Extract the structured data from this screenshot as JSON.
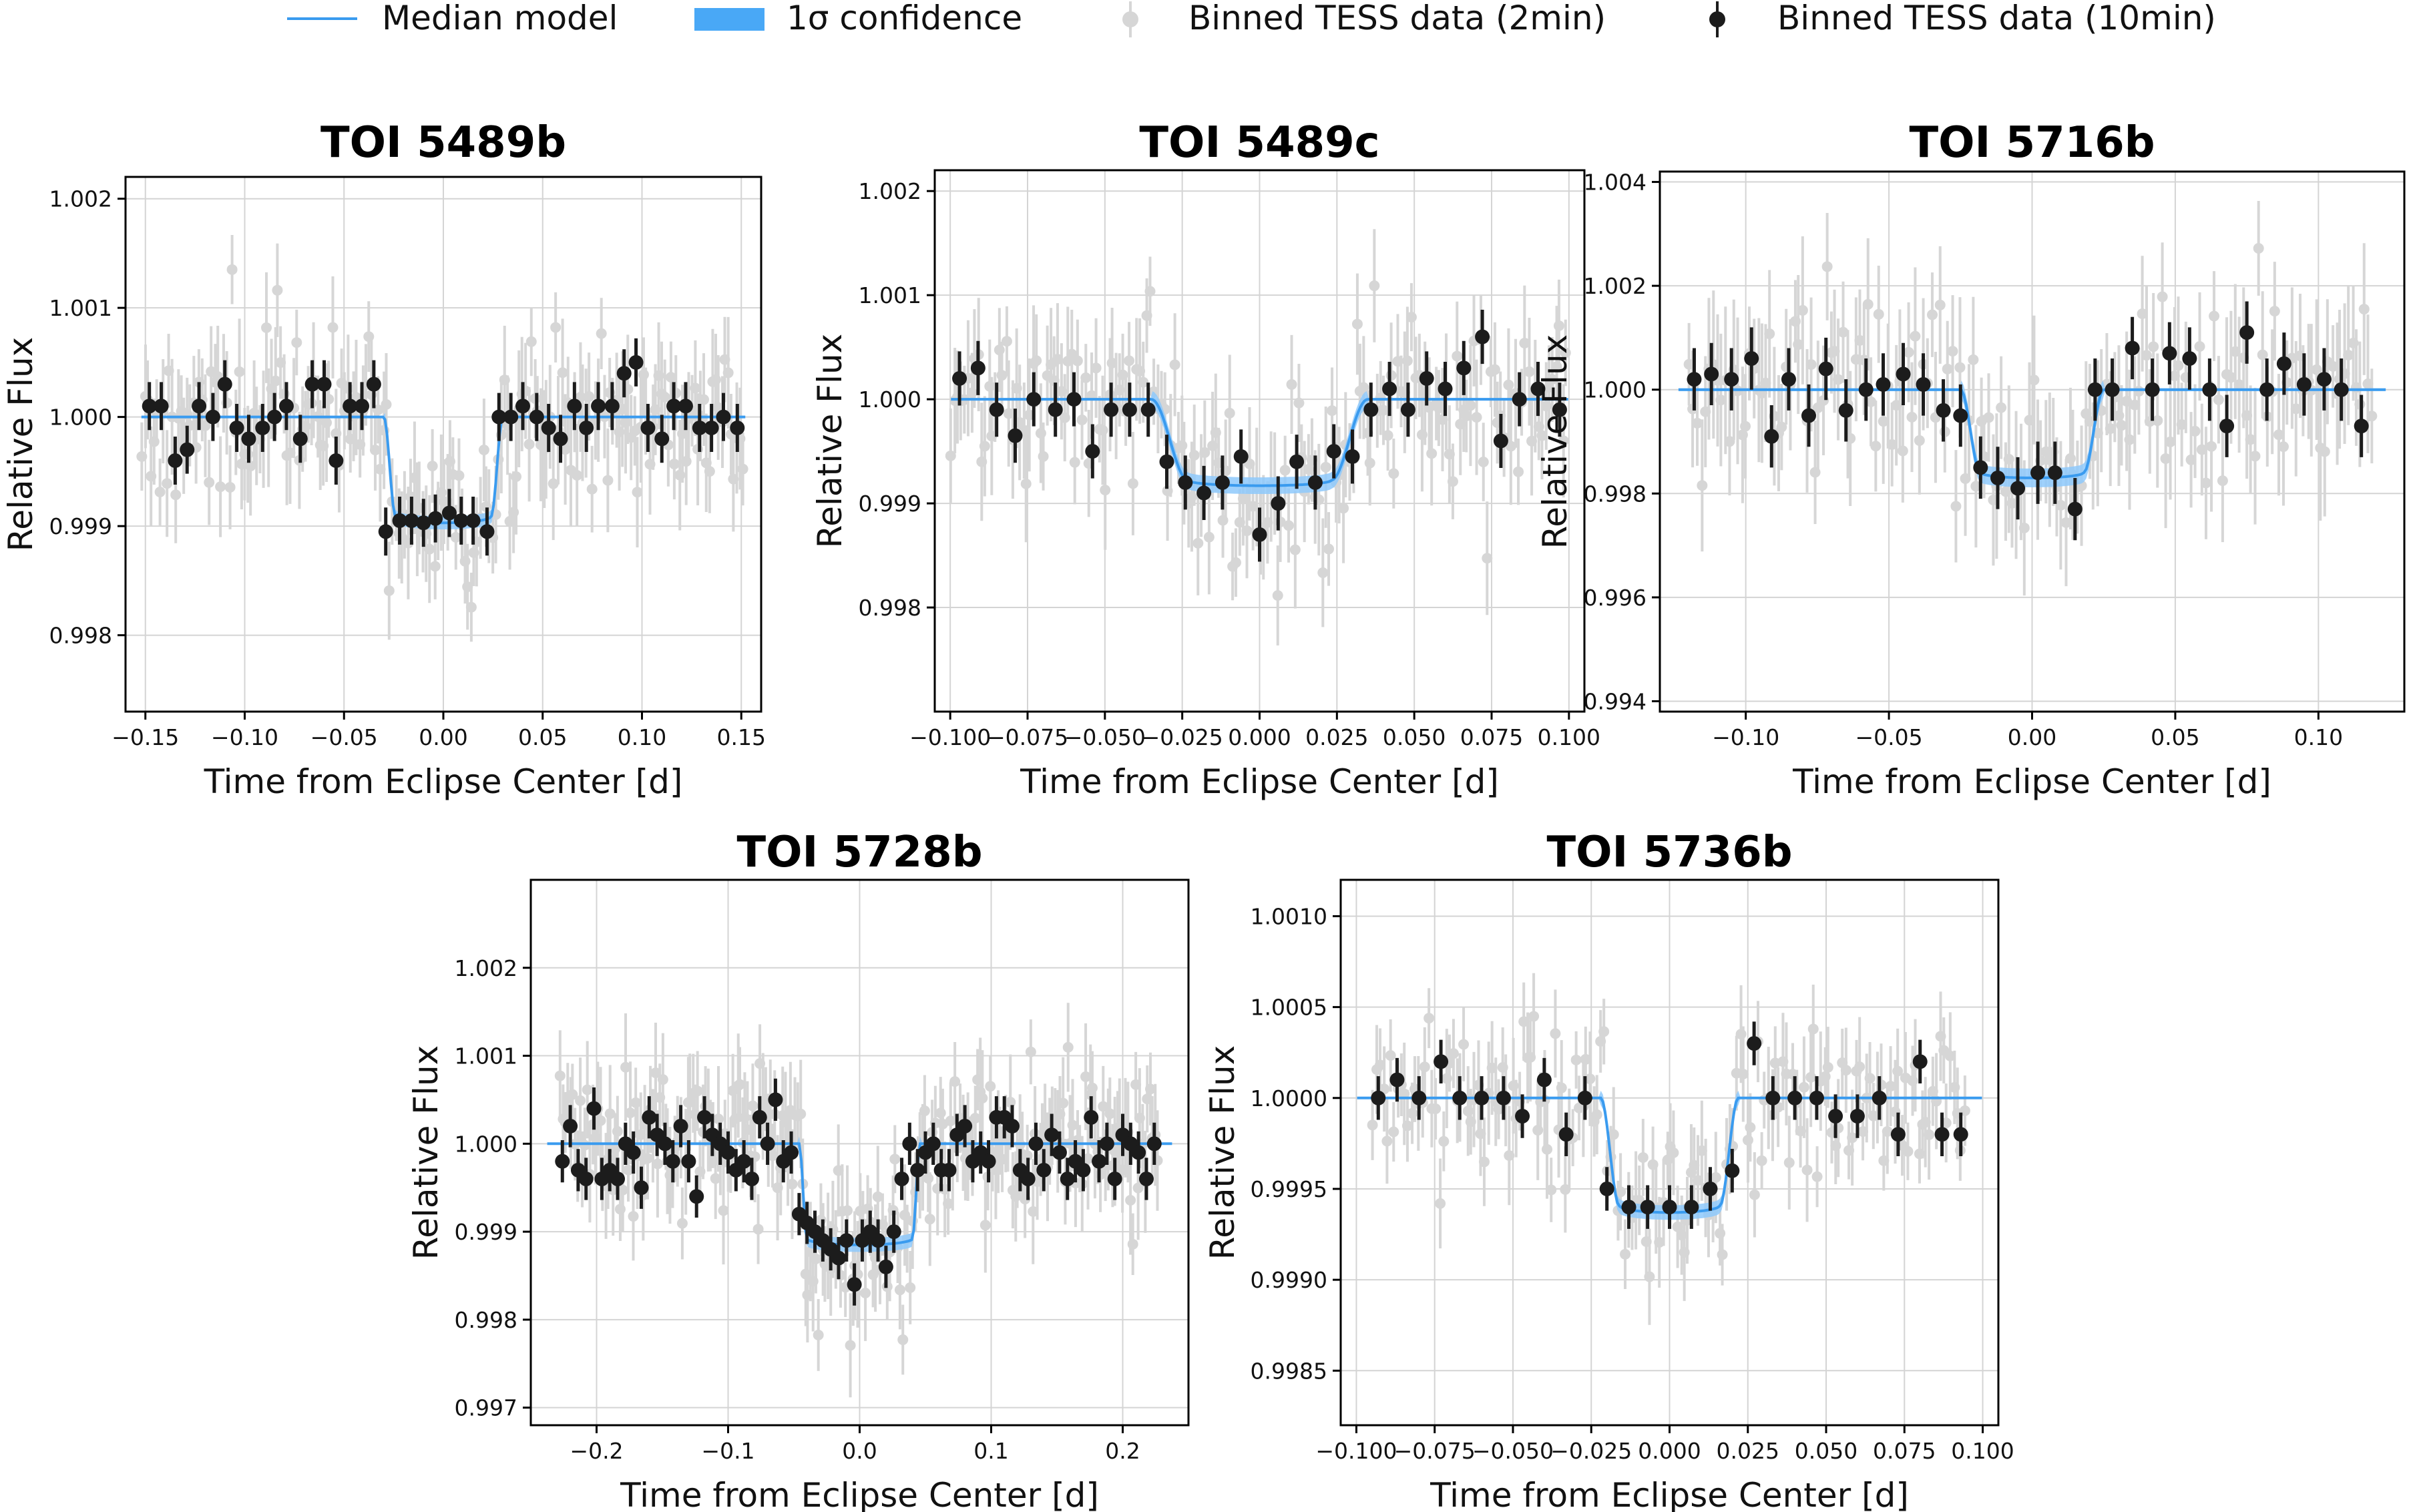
{
  "legend": {
    "items": [
      {
        "label": "Median model",
        "kind": "line",
        "color": "#3a9bef"
      },
      {
        "label": "1σ confidence",
        "kind": "band",
        "color": "#49a8f6"
      },
      {
        "label": "Binned TESS data (2min)",
        "kind": "gray-point",
        "color": "#d9d9d9"
      },
      {
        "label": "Binned TESS data (10min)",
        "kind": "black-point",
        "color": "#1a1a1a"
      }
    ]
  },
  "colors": {
    "model": "#3a9bef",
    "band": "#8ec9fb",
    "gray": "#d6d6d6",
    "black": "#1c1c1c"
  },
  "chart_data": [
    {
      "type": "scatter",
      "id": "toi5489b",
      "title": "TOI 5489b",
      "xlabel": "Time from Eclipse Center [d]",
      "ylabel": "Relative Flux",
      "xlim": [
        -0.16,
        0.16
      ],
      "ylim": [
        0.9973,
        1.0022
      ],
      "xticks": [
        -0.15,
        -0.1,
        -0.05,
        0.0,
        0.05,
        0.1,
        0.15
      ],
      "xtick_labels": [
        "−0.15",
        "−0.10",
        "−0.05",
        "0.00",
        "0.05",
        "0.10",
        "0.15"
      ],
      "yticks": [
        0.998,
        0.999,
        1.0,
        1.001,
        1.002
      ],
      "ytick_labels": [
        "0.998",
        "0.999",
        "1.000",
        "1.001",
        "1.002"
      ],
      "model": {
        "baseline": 1.0,
        "depth": 0.00097,
        "t_half": 0.03,
        "ingress": 0.006,
        "band": 6e-05
      },
      "gray": {
        "n": 200,
        "xrange": [
          -0.152,
          0.152
        ],
        "scatter": 0.00038,
        "err": 0.00042,
        "seed": 11
      },
      "binned": {
        "x": [
          -0.148,
          -0.142,
          -0.135,
          -0.129,
          -0.123,
          -0.116,
          -0.11,
          -0.104,
          -0.098,
          -0.091,
          -0.085,
          -0.079,
          -0.072,
          -0.066,
          -0.06,
          -0.054,
          -0.047,
          -0.041,
          -0.035,
          -0.029,
          -0.022,
          -0.016,
          -0.01,
          -0.004,
          0.003,
          0.009,
          0.015,
          0.022,
          0.028,
          0.034,
          0.04,
          0.047,
          0.053,
          0.059,
          0.066,
          0.072,
          0.078,
          0.085,
          0.091,
          0.097,
          0.103,
          0.11,
          0.116,
          0.122,
          0.129,
          0.135,
          0.141,
          0.148
        ],
        "y": [
          1.0001,
          1.0001,
          0.9996,
          0.9997,
          1.0001,
          1.0,
          1.0003,
          0.9999,
          0.9998,
          0.9999,
          1.0,
          1.0001,
          0.9998,
          1.0003,
          1.0003,
          0.9996,
          1.0001,
          1.0001,
          1.0003,
          0.99895,
          0.99905,
          0.99905,
          0.99903,
          0.99907,
          0.99912,
          0.99905,
          0.99905,
          0.99895,
          1.0,
          1.0,
          1.0001,
          1.0,
          0.9999,
          0.9998,
          1.0001,
          0.9999,
          1.0001,
          1.0001,
          1.0004,
          1.0005,
          0.9999,
          0.9998,
          1.0001,
          1.0001,
          0.9999,
          0.9999,
          1.0,
          0.9999
        ],
        "err": 0.00022
      }
    },
    {
      "type": "scatter",
      "id": "toi5489c",
      "title": "TOI 5489c",
      "xlabel": "Time from Eclipse Center [d]",
      "ylabel": "Relative Flux",
      "xlim": [
        -0.105,
        0.105
      ],
      "ylim": [
        0.997,
        1.0022
      ],
      "xticks": [
        -0.1,
        -0.075,
        -0.05,
        -0.025,
        0.0,
        0.025,
        0.05,
        0.075,
        0.1
      ],
      "xtick_labels": [
        "−0.100",
        "−0.075",
        "−0.050",
        "−0.025",
        "0.000",
        "0.025",
        "0.050",
        "0.075",
        "0.100"
      ],
      "yticks": [
        0.998,
        0.999,
        1.0,
        1.001,
        1.002
      ],
      "ytick_labels": [
        "0.998",
        "0.999",
        "1.000",
        "1.001",
        "1.002"
      ],
      "model": {
        "baseline": 1.0,
        "depth": 0.00083,
        "t_half": 0.035,
        "ingress": 0.012,
        "band": 8e-05
      },
      "gray": {
        "n": 180,
        "xrange": [
          -0.1,
          0.1
        ],
        "scatter": 0.00042,
        "err": 0.00045,
        "seed": 23
      },
      "binned": {
        "x": [
          -0.097,
          -0.091,
          -0.085,
          -0.079,
          -0.073,
          -0.066,
          -0.06,
          -0.054,
          -0.048,
          -0.042,
          -0.036,
          -0.03,
          -0.024,
          -0.018,
          -0.012,
          -0.006,
          0.0,
          0.006,
          0.012,
          0.018,
          0.024,
          0.03,
          0.036,
          0.042,
          0.048,
          0.054,
          0.06,
          0.066,
          0.072,
          0.078,
          0.084,
          0.09,
          0.097
        ],
        "y": [
          1.0002,
          1.0003,
          0.9999,
          0.99965,
          1.0,
          0.9999,
          1.0,
          0.9995,
          0.9999,
          0.9999,
          0.9999,
          0.9994,
          0.9992,
          0.9991,
          0.9992,
          0.99945,
          0.9987,
          0.999,
          0.9994,
          0.9992,
          0.9995,
          0.99945,
          0.9999,
          1.0001,
          0.9999,
          1.0002,
          1.0001,
          1.0003,
          1.0006,
          0.9996,
          1.0,
          1.0001,
          0.9999
        ],
        "err": 0.00026
      }
    },
    {
      "type": "scatter",
      "id": "toi5716b",
      "title": "TOI 5716b",
      "xlabel": "Time from Eclipse Center [d]",
      "ylabel": "Relative Flux",
      "xlim": [
        -0.13,
        0.13
      ],
      "ylim": [
        0.9938,
        1.0042
      ],
      "xticks": [
        -0.1,
        -0.05,
        0.0,
        0.05,
        0.1
      ],
      "xtick_labels": [
        "−0.10",
        "−0.05",
        "0.00",
        "0.05",
        "0.10"
      ],
      "yticks": [
        0.994,
        0.996,
        0.998,
        1.0,
        1.002,
        1.004
      ],
      "ytick_labels": [
        "0.994",
        "0.996",
        "0.998",
        "1.000",
        "1.002",
        "1.004"
      ],
      "model": {
        "baseline": 1.0,
        "depth": 0.0017,
        "t_half": 0.025,
        "ingress": 0.007,
        "band": 0.00018
      },
      "gray": {
        "n": 170,
        "xrange": [
          -0.12,
          0.12
        ],
        "scatter": 0.0009,
        "err": 0.0011,
        "seed": 37
      },
      "binned": {
        "x": [
          -0.118,
          -0.112,
          -0.105,
          -0.098,
          -0.091,
          -0.085,
          -0.078,
          -0.072,
          -0.065,
          -0.058,
          -0.052,
          -0.045,
          -0.038,
          -0.031,
          -0.025,
          -0.018,
          -0.012,
          -0.005,
          0.002,
          0.008,
          0.015,
          0.022,
          0.028,
          0.035,
          0.042,
          0.048,
          0.055,
          0.062,
          0.068,
          0.075,
          0.082,
          0.088,
          0.095,
          0.102,
          0.108,
          0.115
        ],
        "y": [
          1.0002,
          1.0003,
          1.0002,
          1.0006,
          0.9991,
          1.0002,
          0.9995,
          1.0004,
          0.9996,
          1.0,
          1.0001,
          1.0003,
          1.0001,
          0.9996,
          0.9995,
          0.9985,
          0.9983,
          0.9981,
          0.9984,
          0.9984,
          0.9977,
          1.0,
          1.0,
          1.0008,
          1.0,
          1.0007,
          1.0006,
          1.0,
          0.9993,
          1.0011,
          1.0,
          1.0005,
          1.0001,
          1.0002,
          1.0,
          0.9993
        ],
        "err": 0.0006
      }
    },
    {
      "type": "scatter",
      "id": "toi5728b",
      "title": "TOI 5728b",
      "xlabel": "Time from Eclipse Center [d]",
      "ylabel": "Relative Flux",
      "xlim": [
        -0.25,
        0.25
      ],
      "ylim": [
        0.9968,
        1.003
      ],
      "xticks": [
        -0.2,
        -0.1,
        0.0,
        0.1,
        0.2
      ],
      "xtick_labels": [
        "−0.2",
        "−0.1",
        "0.0",
        "0.1",
        "0.2"
      ],
      "yticks": [
        0.997,
        0.998,
        0.999,
        1.0,
        1.001,
        1.002
      ],
      "ytick_labels": [
        "0.997",
        "0.998",
        "0.999",
        "1.000",
        "1.001",
        "1.002"
      ],
      "model": {
        "baseline": 1.0,
        "depth": 0.00115,
        "t_half": 0.046,
        "ingress": 0.006,
        "band": 8e-05
      },
      "gray": {
        "n": 240,
        "xrange": [
          -0.228,
          0.228
        ],
        "scatter": 0.00045,
        "err": 0.00048,
        "seed": 53
      },
      "binned": {
        "x": [
          -0.226,
          -0.22,
          -0.214,
          -0.208,
          -0.202,
          -0.196,
          -0.19,
          -0.184,
          -0.178,
          -0.172,
          -0.166,
          -0.16,
          -0.154,
          -0.148,
          -0.142,
          -0.136,
          -0.13,
          -0.124,
          -0.118,
          -0.112,
          -0.106,
          -0.1,
          -0.094,
          -0.088,
          -0.082,
          -0.076,
          -0.07,
          -0.064,
          -0.058,
          -0.052,
          -0.046,
          -0.04,
          -0.034,
          -0.028,
          -0.022,
          -0.016,
          -0.01,
          -0.004,
          0.002,
          0.008,
          0.014,
          0.02,
          0.026,
          0.032,
          0.038,
          0.044,
          0.05,
          0.056,
          0.062,
          0.068,
          0.074,
          0.08,
          0.086,
          0.092,
          0.098,
          0.104,
          0.11,
          0.116,
          0.122,
          0.128,
          0.134,
          0.14,
          0.146,
          0.152,
          0.158,
          0.164,
          0.17,
          0.176,
          0.182,
          0.188,
          0.194,
          0.2,
          0.206,
          0.212,
          0.218,
          0.224
        ],
        "y": [
          0.9998,
          1.0002,
          0.9997,
          0.9996,
          1.0004,
          0.9996,
          0.9997,
          0.9996,
          1.0,
          0.9999,
          0.9995,
          1.0003,
          1.0001,
          1.0,
          0.9998,
          1.0002,
          0.9998,
          0.9994,
          1.0003,
          1.0001,
          1.0,
          0.9999,
          0.9997,
          0.9998,
          0.9996,
          1.0003,
          1.0,
          1.0005,
          0.9998,
          0.9999,
          0.9992,
          0.9991,
          0.999,
          0.9989,
          0.9988,
          0.9987,
          0.9989,
          0.9984,
          0.9989,
          0.999,
          0.9989,
          0.9986,
          0.999,
          0.9996,
          1.0,
          0.9997,
          0.9999,
          1.0,
          0.9997,
          0.9997,
          1.0001,
          1.0002,
          0.9998,
          0.9999,
          0.9998,
          1.0003,
          1.0003,
          1.0002,
          0.9997,
          0.9996,
          1.0,
          0.9997,
          1.0001,
          0.9999,
          0.9996,
          0.9998,
          0.9997,
          1.0003,
          0.9998,
          1.0,
          0.9996,
          1.0001,
          1.0,
          0.9999,
          0.9996,
          1.0
        ],
        "err": 0.00024
      }
    },
    {
      "type": "scatter",
      "id": "toi5736b",
      "title": "TOI 5736b",
      "xlabel": "Time from Eclipse Center [d]",
      "ylabel": "Relative Flux",
      "xlim": [
        -0.105,
        0.105
      ],
      "ylim": [
        0.9982,
        1.0012
      ],
      "xticks": [
        -0.1,
        -0.075,
        -0.05,
        -0.025,
        0.0,
        0.025,
        0.05,
        0.075,
        0.1
      ],
      "xtick_labels": [
        "−0.100",
        "−0.075",
        "−0.050",
        "−0.025",
        "0.000",
        "0.025",
        "0.050",
        "0.075",
        "0.100"
      ],
      "yticks": [
        0.9985,
        0.999,
        0.9995,
        1.0,
        1.0005,
        1.001
      ],
      "ytick_labels": [
        "0.9985",
        "0.9990",
        "0.9995",
        "1.0000",
        "1.0005",
        "1.0010"
      ],
      "model": {
        "baseline": 1.0,
        "depth": 0.00063,
        "t_half": 0.022,
        "ingress": 0.006,
        "band": 4e-05
      },
      "gray": {
        "n": 170,
        "xrange": [
          -0.095,
          0.095
        ],
        "scatter": 0.0002,
        "err": 0.00022,
        "seed": 71
      },
      "binned": {
        "x": [
          -0.093,
          -0.087,
          -0.08,
          -0.073,
          -0.067,
          -0.06,
          -0.053,
          -0.047,
          -0.04,
          -0.033,
          -0.027,
          -0.02,
          -0.013,
          -0.007,
          0.0,
          0.007,
          0.013,
          0.02,
          0.027,
          0.033,
          0.04,
          0.047,
          0.053,
          0.06,
          0.067,
          0.073,
          0.08,
          0.087,
          0.093
        ],
        "y": [
          1.0,
          1.0001,
          1.0,
          1.0002,
          1.0,
          1.0,
          1.0,
          0.9999,
          1.0001,
          0.9998,
          1.0,
          0.9995,
          0.9994,
          0.9994,
          0.9994,
          0.9994,
          0.9995,
          0.9996,
          1.0003,
          1.0,
          1.0,
          1.0,
          0.9999,
          0.9999,
          1.0,
          0.9998,
          1.0002,
          0.9998,
          0.9998
        ],
        "err": 0.00012
      }
    }
  ]
}
